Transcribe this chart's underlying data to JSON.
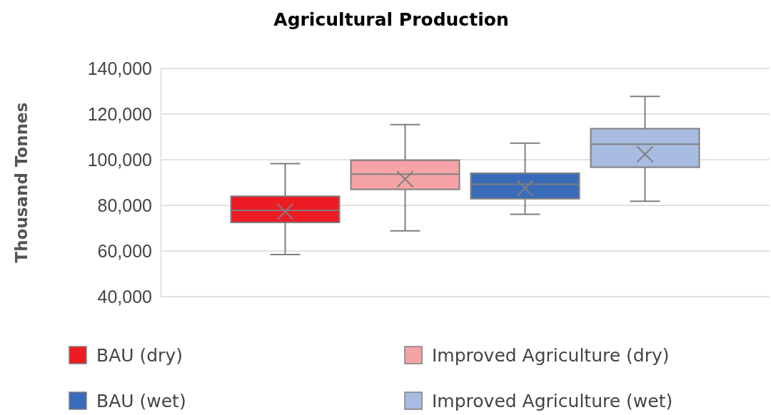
{
  "chart_data": {
    "type": "box",
    "title": "Agricultural Production",
    "ylabel": "Thousand Tonnes",
    "categories": [
      null
    ],
    "ylim": [
      40000,
      140000
    ],
    "yticks": [
      {
        "value": 40000,
        "label": "40,000"
      },
      {
        "value": 60000,
        "label": "60,000"
      },
      {
        "value": 80000,
        "label": "80,000"
      },
      {
        "value": 100000,
        "label": "100,000"
      },
      {
        "value": 120000,
        "label": "120,000"
      },
      {
        "value": 140000,
        "label": "140,000"
      }
    ],
    "grid": "y",
    "legend": "bottom",
    "series": [
      {
        "name": "BAU (dry)",
        "color": "#ed1c24",
        "boxes": [
          {
            "low": 58400,
            "q1": 72500,
            "median": 77800,
            "q3": 84000,
            "high": 98300,
            "mean": 77300
          }
        ]
      },
      {
        "name": "Improved Agriculture (dry)",
        "color": "#f5a3a6",
        "boxes": [
          {
            "low": 68800,
            "q1": 87000,
            "median": 93700,
            "q3": 99800,
            "high": 115400,
            "mean": 91500
          }
        ]
      },
      {
        "name": "BAU (wet)",
        "color": "#3a6bb9",
        "boxes": [
          {
            "low": 76100,
            "q1": 82900,
            "median": 89300,
            "q3": 94100,
            "high": 107300,
            "mean": 87500
          }
        ]
      },
      {
        "name": "Improved Agriculture (wet)",
        "color": "#a7bce0",
        "boxes": [
          {
            "low": 81800,
            "q1": 96700,
            "median": 106800,
            "q3": 113600,
            "high": 127700,
            "mean": 102400
          }
        ]
      }
    ]
  }
}
